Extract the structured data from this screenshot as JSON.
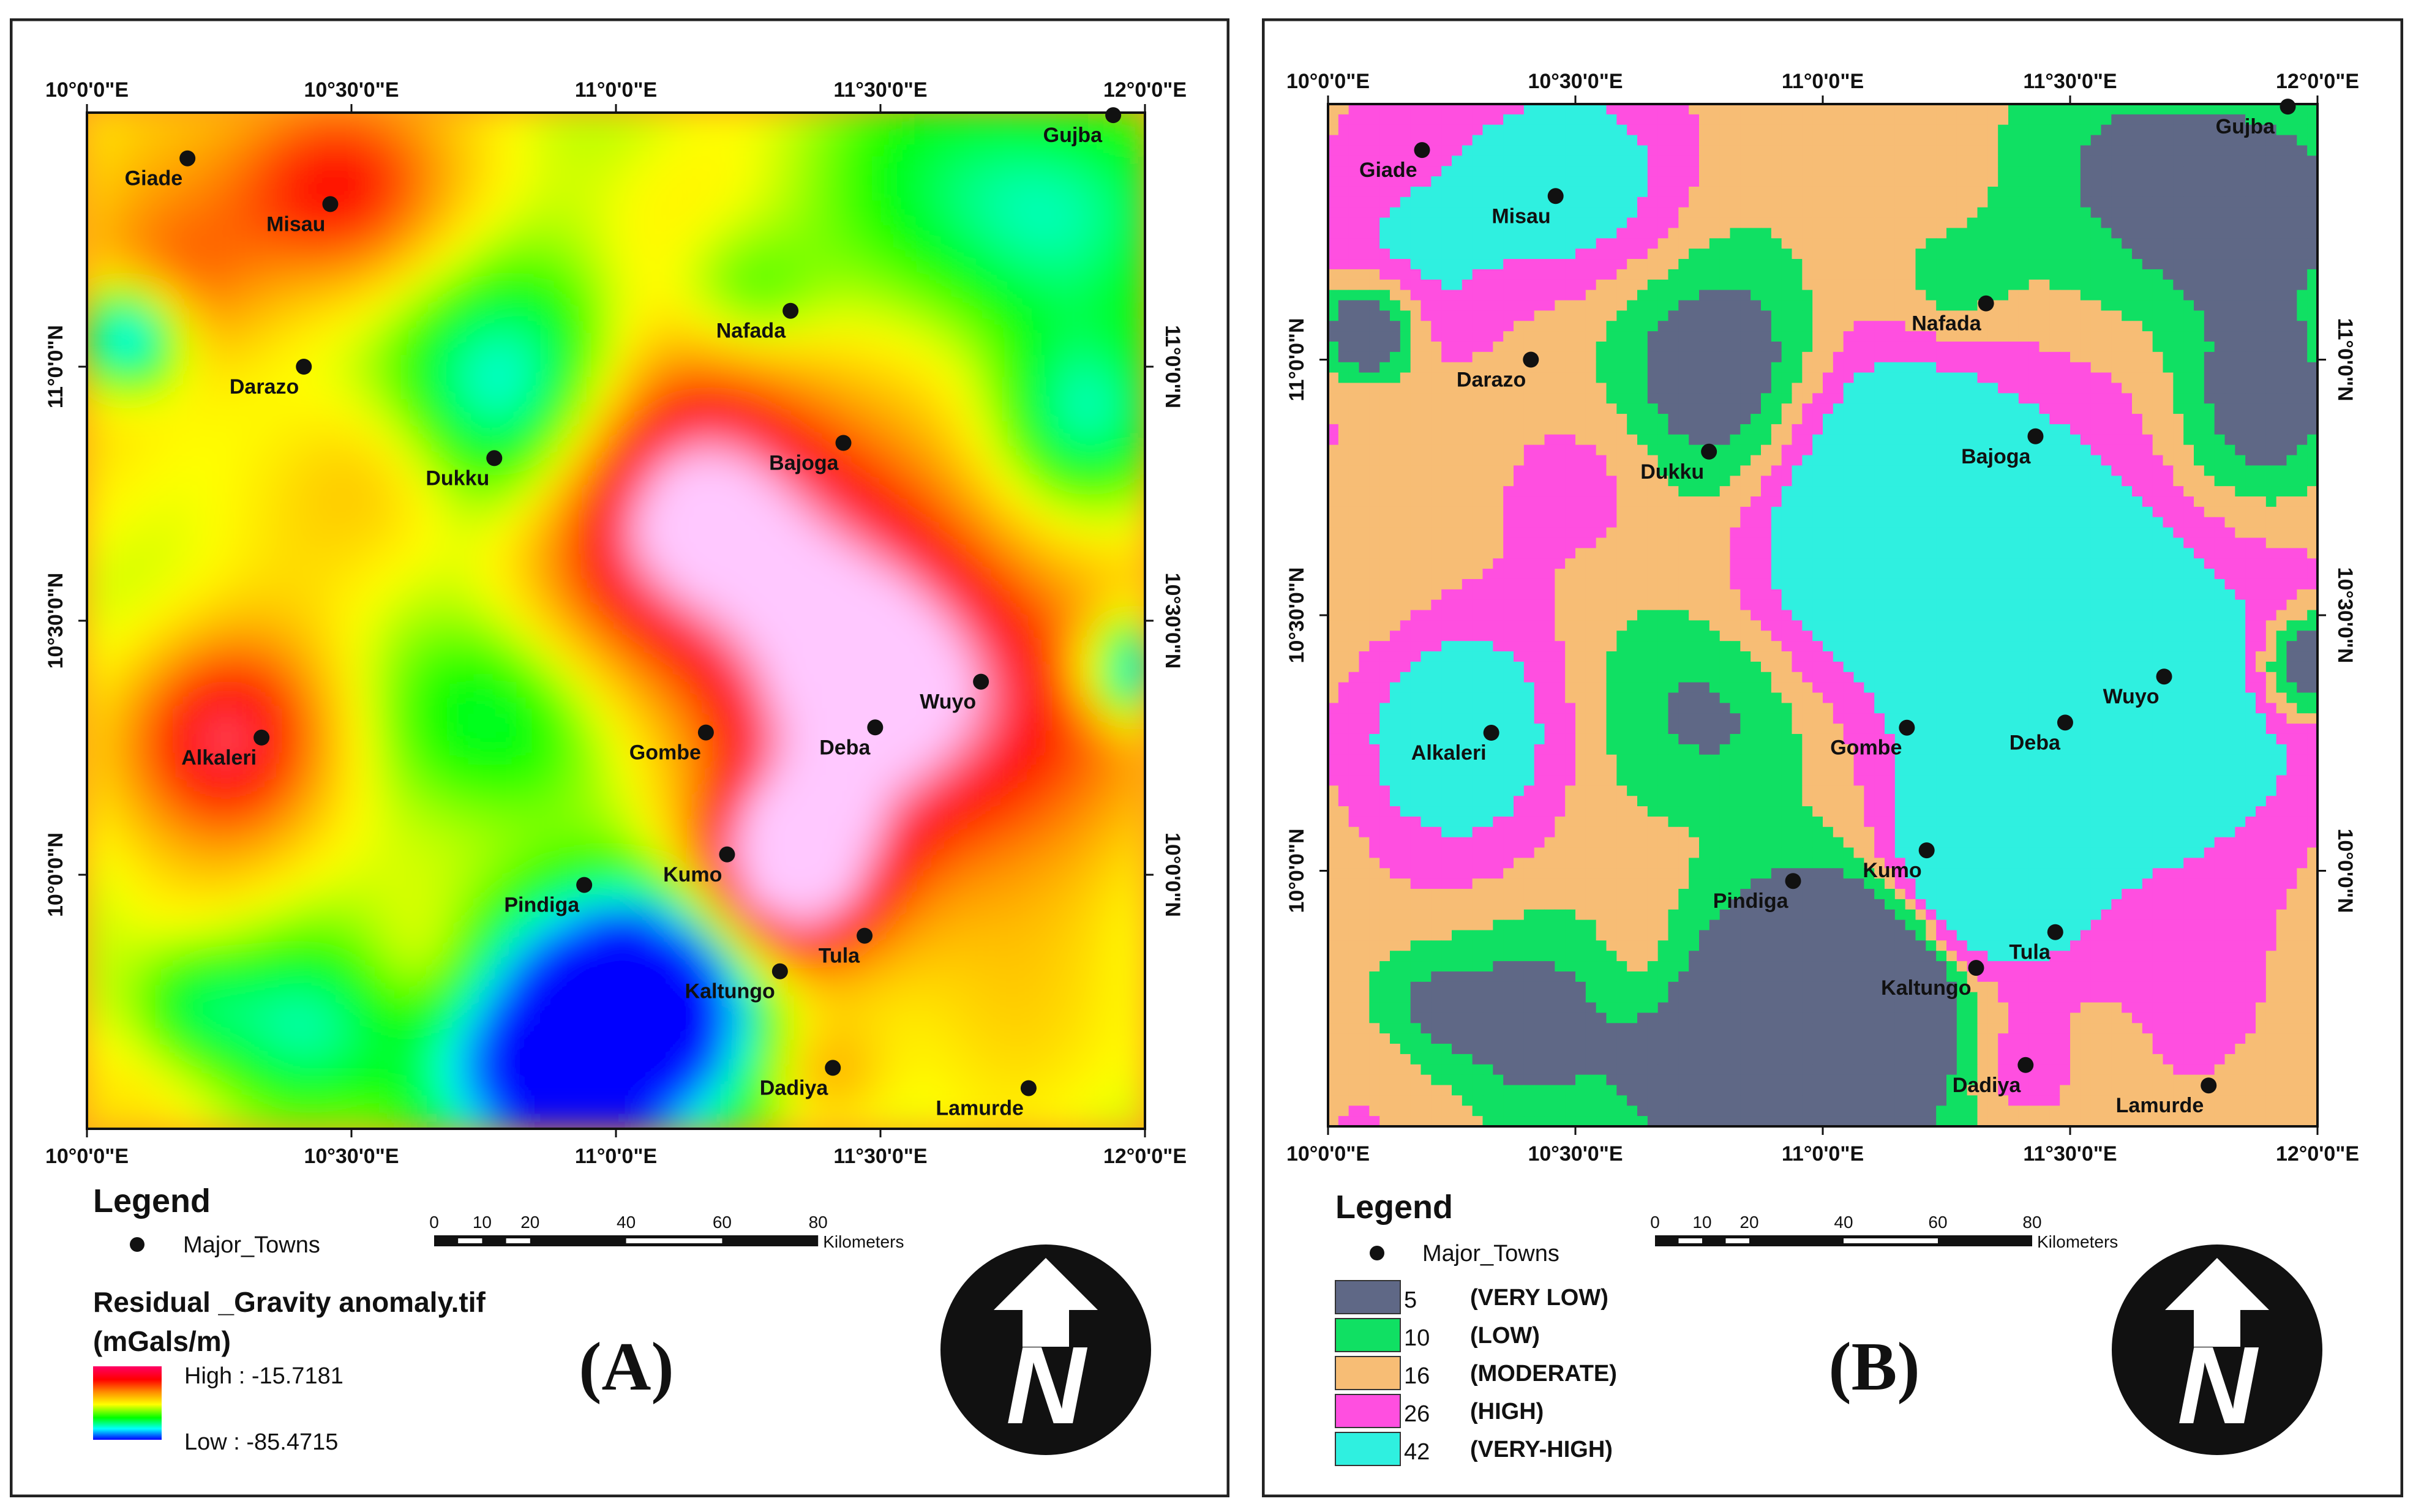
{
  "panels": [
    {
      "id": "A",
      "letter": "(A)",
      "map_type": "continuous",
      "legend": {
        "title": "Legend",
        "town_symbol_label": "Major_Towns",
        "raster_title": "Residual _Gravity anomaly.tif",
        "units": "(mGals/m)",
        "high_label": "High : -15.7181",
        "low_label": "Low : -85.4715"
      }
    },
    {
      "id": "B",
      "letter": "(B)",
      "map_type": "classified",
      "legend": {
        "title": "Legend",
        "town_symbol_label": "Major_Towns",
        "classes": [
          {
            "value": "5",
            "label": "(VERY LOW)",
            "color": "#5f6886"
          },
          {
            "value": "10",
            "label": "(LOW)",
            "color": "#10e063"
          },
          {
            "value": "16",
            "label": "(MODERATE)",
            "color": "#f7bd75"
          },
          {
            "value": "26",
            "label": "(HIGH)",
            "color": "#ff4fe0"
          },
          {
            "value": "42",
            "label": "(VERY-HIGH)",
            "color": "#2ff0e0"
          }
        ]
      }
    }
  ],
  "lon_ticks": [
    "10°0'0\"E",
    "10°30'0\"E",
    "11°0'0\"E",
    "11°30'0\"E",
    "12°0'0\"E"
  ],
  "lat_ticks": [
    "11°0'0\"N",
    "10°30'0\"N",
    "10°0'0\"N"
  ],
  "extent": {
    "lon": [
      10.0,
      12.0
    ],
    "lat": [
      9.5,
      11.5
    ]
  },
  "towns": [
    {
      "name": "Gujba",
      "lon": 11.94,
      "lat": 11.495
    },
    {
      "name": "Giade",
      "lon": 10.19,
      "lat": 11.41
    },
    {
      "name": "Misau",
      "lon": 10.46,
      "lat": 11.32
    },
    {
      "name": "Nafada",
      "lon": 11.33,
      "lat": 11.11
    },
    {
      "name": "Darazo",
      "lon": 10.41,
      "lat": 11.0
    },
    {
      "name": "Dukku",
      "lon": 10.77,
      "lat": 10.82
    },
    {
      "name": "Bajoga",
      "lon": 11.43,
      "lat": 10.85
    },
    {
      "name": "Wuyo",
      "lon": 11.69,
      "lat": 10.38
    },
    {
      "name": "Alkaleri",
      "lon": 10.33,
      "lat": 10.27
    },
    {
      "name": "Gombe",
      "lon": 11.17,
      "lat": 10.28
    },
    {
      "name": "Deba",
      "lon": 11.49,
      "lat": 10.29
    },
    {
      "name": "Kumo",
      "lon": 11.21,
      "lat": 10.04
    },
    {
      "name": "Pindiga",
      "lon": 10.94,
      "lat": 9.98
    },
    {
      "name": "Tula",
      "lon": 11.47,
      "lat": 9.88
    },
    {
      "name": "Kaltungo",
      "lon": 11.31,
      "lat": 9.81
    },
    {
      "name": "Dadiya",
      "lon": 11.41,
      "lat": 9.62
    },
    {
      "name": "Lamurde",
      "lon": 11.78,
      "lat": 9.58
    }
  ],
  "scale_bar": {
    "ticks": [
      "0",
      "10",
      "20",
      "40",
      "60",
      "80"
    ],
    "tick_values": [
      0,
      10,
      20,
      40,
      60,
      80
    ],
    "unit": "Kilometers"
  },
  "north_arrow": {
    "letter": "N"
  },
  "colors": {
    "gradient": [
      "#ff0066",
      "#ff0000",
      "#ff8c00",
      "#ffff00",
      "#00ff00",
      "#00ffff",
      "#0000ff"
    ],
    "continuous_ramp": [
      "#0000ff",
      "#00ffff",
      "#00ff00",
      "#ffff00",
      "#ff8c00",
      "#ff0000",
      "#ffc8ff"
    ]
  }
}
